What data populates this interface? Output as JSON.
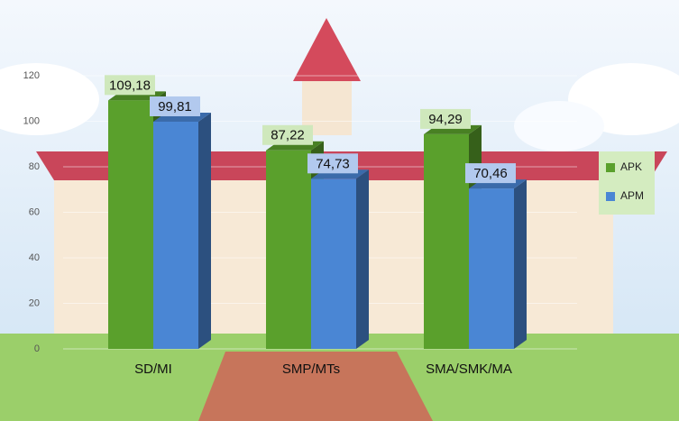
{
  "chart_data": {
    "type": "bar3d",
    "categories": [
      "SD/MI",
      "SMP/MTs",
      "SMA/SMK/MA"
    ],
    "series": [
      {
        "name": "APK",
        "color": "#5aa02c",
        "values": [
          109.18,
          87.22,
          94.29
        ],
        "value_labels": [
          "109,18",
          "87,22",
          "94,29"
        ]
      },
      {
        "name": "APM",
        "color": "#4a86d4",
        "values": [
          99.81,
          74.73,
          70.46
        ],
        "value_labels": [
          "99,81",
          "74,73",
          "70,46"
        ]
      }
    ],
    "ylim": [
      0,
      120
    ],
    "yticks": [
      0,
      20,
      40,
      60,
      80,
      100,
      120
    ],
    "grid": true,
    "legend": "right"
  }
}
